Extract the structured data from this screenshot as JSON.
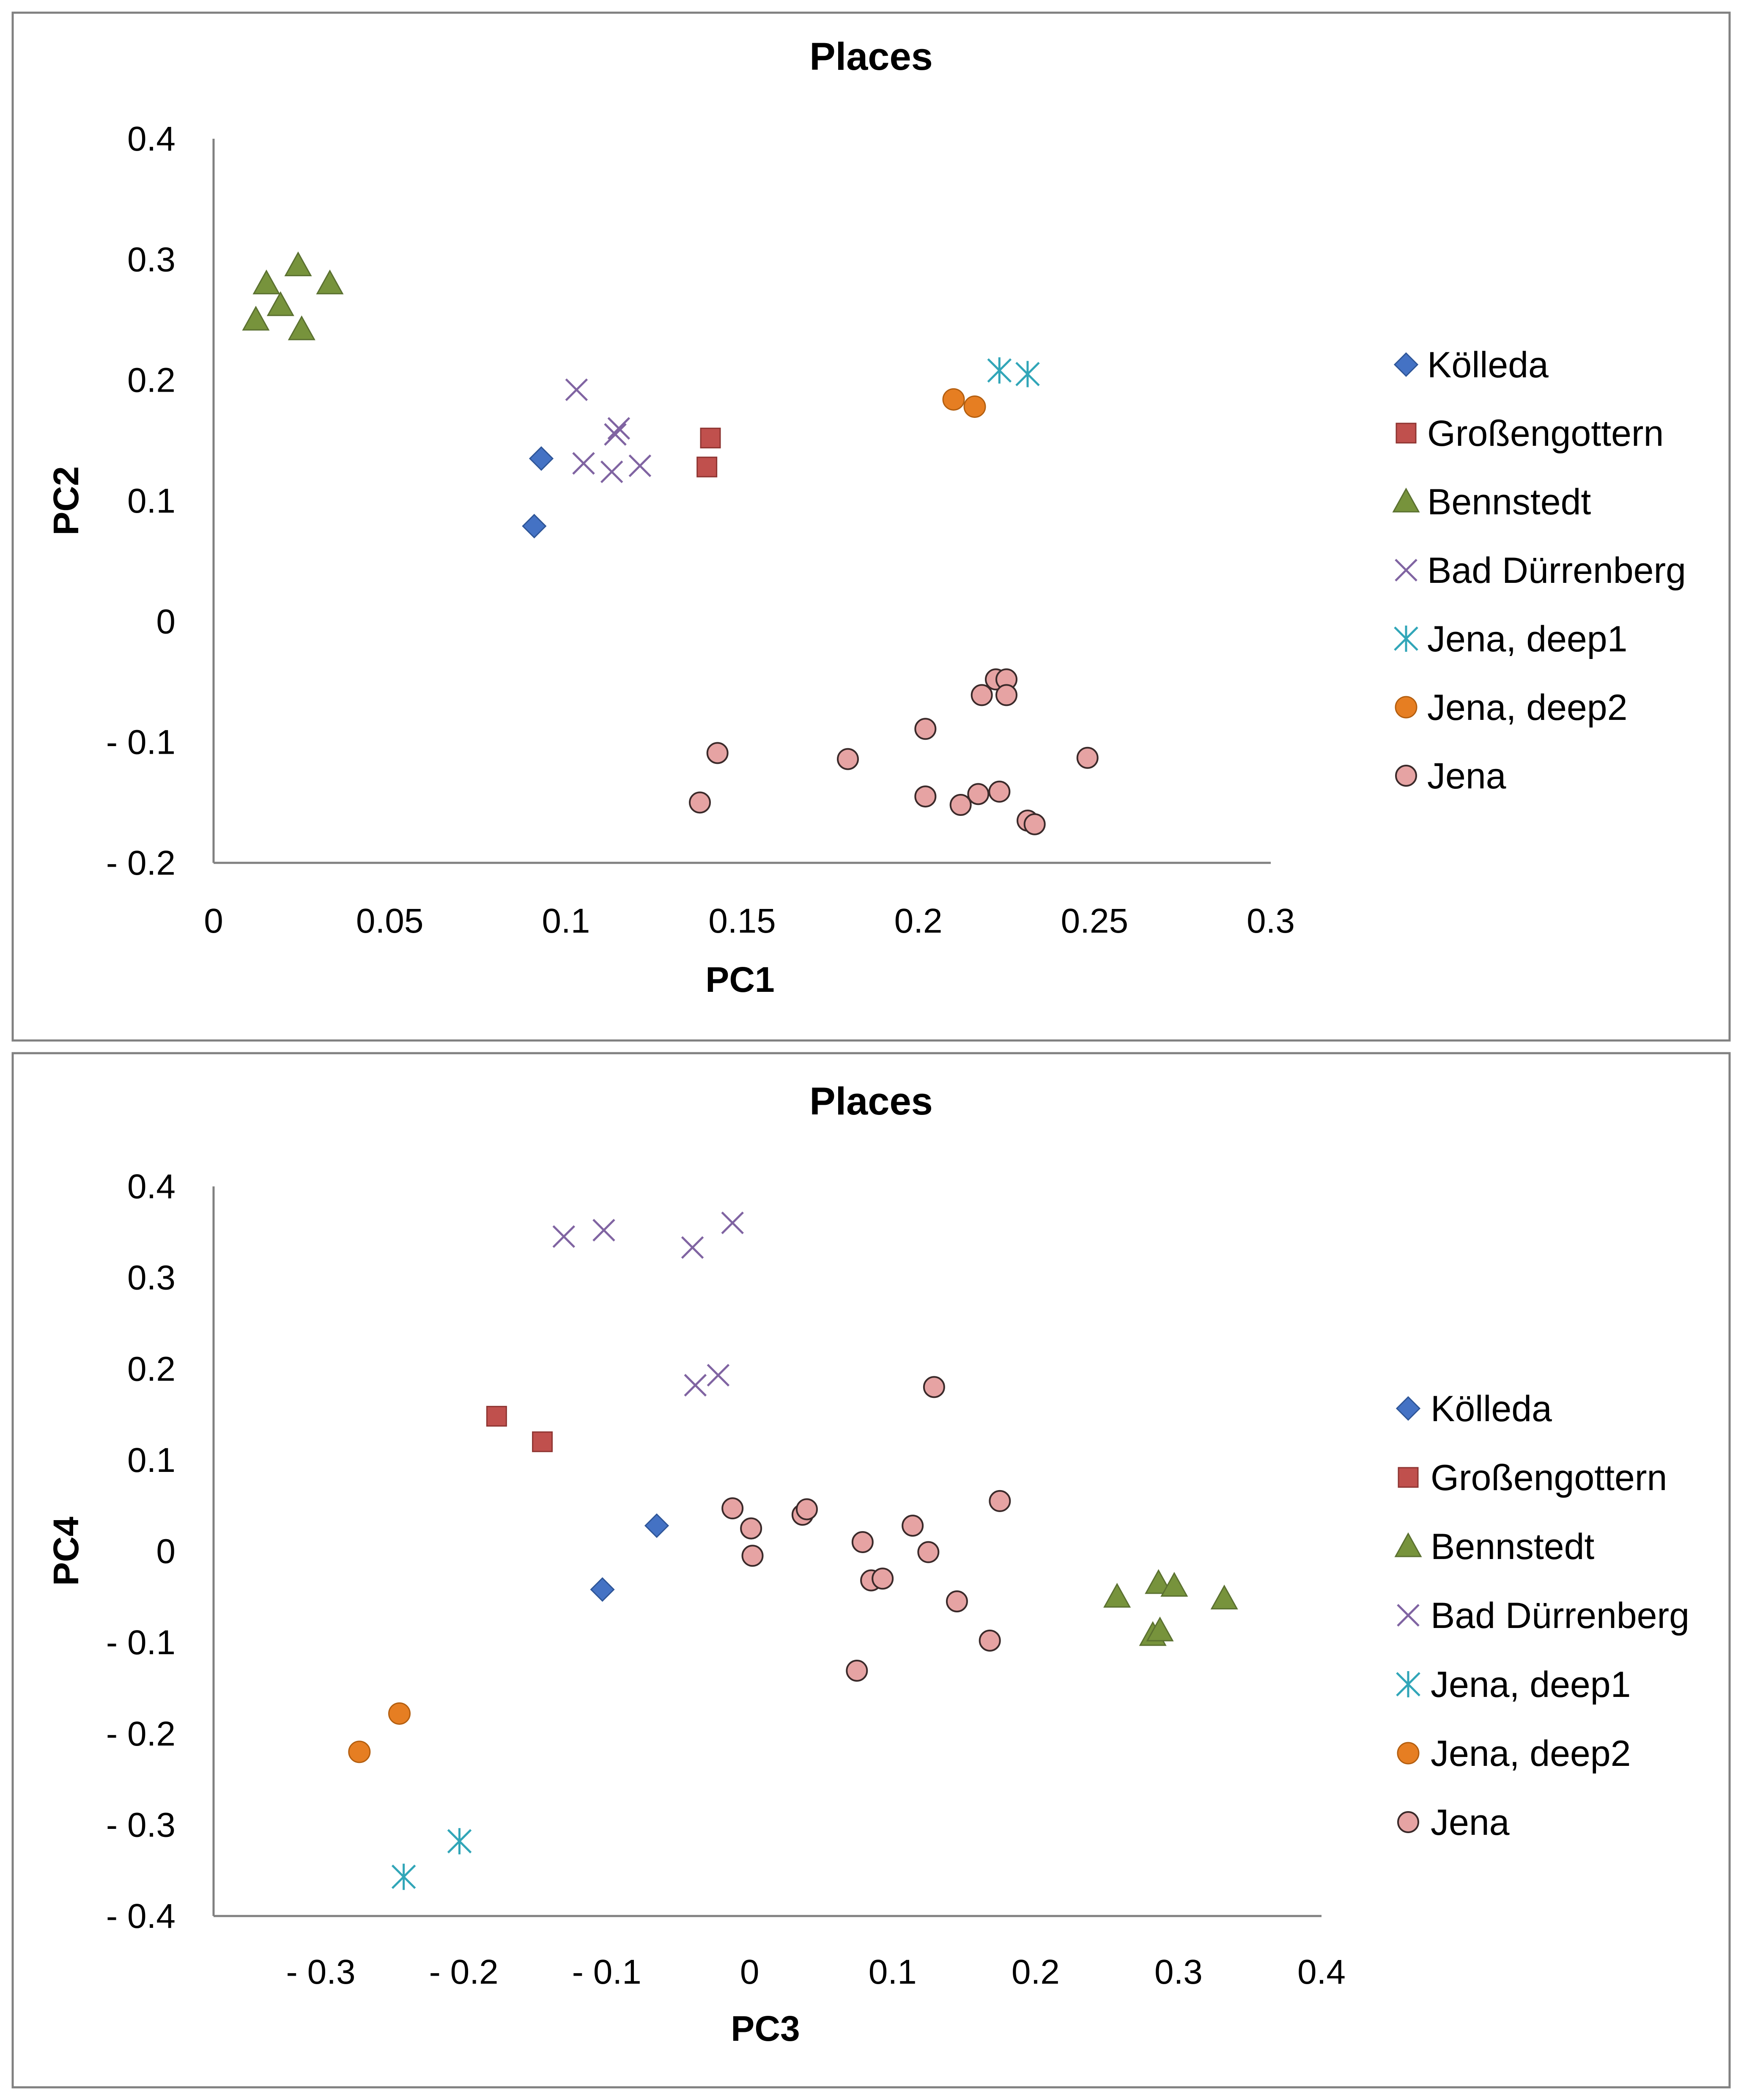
{
  "chart_data": [
    {
      "type": "scatter",
      "title": "Places",
      "xlabel": "PC1",
      "ylabel": "PC2",
      "xlim": [
        0,
        0.3
      ],
      "ylim": [
        -0.2,
        0.4
      ],
      "xticks": [
        0,
        0.05,
        0.1,
        0.15,
        0.2,
        0.25,
        0.3
      ],
      "xtick_labels": [
        "0",
        "0.05",
        "0.1",
        "0.15",
        "0.2",
        "0.25",
        "0.3"
      ],
      "yticks": [
        0.4,
        0.3,
        0.2,
        0.1,
        0,
        -0.1,
        -0.2
      ],
      "ytick_labels": [
        "0.4",
        "0.3",
        "0.2",
        "0.1",
        "0",
        "- 0.1",
        "- 0.2"
      ],
      "grid": false,
      "legend_position": "right",
      "series": [
        {
          "name": "Kölleda",
          "marker": "diamond",
          "color": "#4472C4",
          "points": [
            [
              0.093,
              0.135
            ],
            [
              0.091,
              0.079
            ]
          ]
        },
        {
          "name": "Großengottern",
          "marker": "square",
          "color": "#C0504D",
          "points": [
            [
              0.141,
              0.152
            ],
            [
              0.14,
              0.128
            ]
          ]
        },
        {
          "name": "Bennstedt",
          "marker": "triangle",
          "color": "#77933C",
          "points": [
            [
              0.015,
              0.28
            ],
            [
              0.024,
              0.295
            ],
            [
              0.033,
              0.28
            ],
            [
              0.012,
              0.25
            ],
            [
              0.019,
              0.262
            ],
            [
              0.025,
              0.242
            ]
          ]
        },
        {
          "name": "Bad Dürrenberg",
          "marker": "x",
          "color": "#8064A2",
          "points": [
            [
              0.103,
              0.192
            ],
            [
              0.115,
              0.16
            ],
            [
              0.114,
              0.155
            ],
            [
              0.105,
              0.131
            ],
            [
              0.113,
              0.124
            ],
            [
              0.121,
              0.129
            ]
          ]
        },
        {
          "name": "Jena, deep1",
          "marker": "star",
          "color": "#31A6B8",
          "points": [
            [
              0.223,
              0.208
            ],
            [
              0.231,
              0.205
            ]
          ]
        },
        {
          "name": "Jena, deep2",
          "marker": "circle",
          "color": "#E67E22",
          "points": [
            [
              0.21,
              0.184
            ],
            [
              0.216,
              0.178
            ]
          ]
        },
        {
          "name": "Jena",
          "marker": "circle-outline",
          "color": "#E6A3A3",
          "points": [
            [
              0.222,
              -0.048
            ],
            [
              0.225,
              -0.048
            ],
            [
              0.218,
              -0.061
            ],
            [
              0.225,
              -0.061
            ],
            [
              0.202,
              -0.089
            ],
            [
              0.143,
              -0.109
            ],
            [
              0.18,
              -0.114
            ],
            [
              0.248,
              -0.113
            ],
            [
              0.138,
              -0.15
            ],
            [
              0.202,
              -0.145
            ],
            [
              0.212,
              -0.152
            ],
            [
              0.217,
              -0.143
            ],
            [
              0.223,
              -0.141
            ],
            [
              0.231,
              -0.165
            ],
            [
              0.233,
              -0.168
            ]
          ]
        }
      ]
    },
    {
      "type": "scatter",
      "title": "Places",
      "xlabel": "PC3",
      "ylabel": "PC4",
      "xlim": [
        -0.375,
        0.4
      ],
      "ylim": [
        -0.4,
        0.4
      ],
      "xticks": [
        -0.3,
        -0.2,
        -0.1,
        0,
        0.1,
        0.2,
        0.3,
        0.4
      ],
      "xtick_labels": [
        "- 0.3",
        "- 0.2",
        "- 0.1",
        "0",
        "0.1",
        "0.2",
        "0.3",
        "0.4"
      ],
      "yticks": [
        0.4,
        0.3,
        0.2,
        0.1,
        0,
        -0.1,
        -0.2,
        -0.3,
        -0.4
      ],
      "ytick_labels": [
        "0.4",
        "0.3",
        "0.2",
        "0.1",
        "0",
        "- 0.1",
        "- 0.2",
        "- 0.3",
        "- 0.4"
      ],
      "grid": false,
      "legend_position": "right",
      "series": [
        {
          "name": "Kölleda",
          "marker": "diamond",
          "color": "#4472C4",
          "points": [
            [
              -0.065,
              0.028
            ],
            [
              -0.103,
              -0.042
            ]
          ]
        },
        {
          "name": "Großengottern",
          "marker": "square",
          "color": "#C0504D",
          "points": [
            [
              -0.177,
              0.148
            ],
            [
              -0.145,
              0.12
            ]
          ]
        },
        {
          "name": "Bennstedt",
          "marker": "triangle",
          "color": "#77933C",
          "points": [
            [
              0.257,
              -0.05
            ],
            [
              0.286,
              -0.035
            ],
            [
              0.297,
              -0.038
            ],
            [
              0.332,
              -0.052
            ],
            [
              0.282,
              -0.092
            ],
            [
              0.287,
              -0.087
            ]
          ]
        },
        {
          "name": "Bad Dürrenberg",
          "marker": "x",
          "color": "#8064A2",
          "points": [
            [
              -0.13,
              0.345
            ],
            [
              -0.102,
              0.352
            ],
            [
              -0.04,
              0.333
            ],
            [
              -0.012,
              0.36
            ],
            [
              -0.038,
              0.182
            ],
            [
              -0.022,
              0.193
            ]
          ]
        },
        {
          "name": "Jena, deep1",
          "marker": "star",
          "color": "#31A6B8",
          "points": [
            [
              -0.203,
              -0.318
            ],
            [
              -0.242,
              -0.357
            ]
          ]
        },
        {
          "name": "Jena, deep2",
          "marker": "circle",
          "color": "#E67E22",
          "points": [
            [
              -0.245,
              -0.178
            ],
            [
              -0.273,
              -0.22
            ]
          ]
        },
        {
          "name": "Jena",
          "marker": "circle-outline",
          "color": "#E6A3A3",
          "points": [
            [
              0.129,
              0.18
            ],
            [
              0.175,
              0.055
            ],
            [
              -0.012,
              0.047
            ],
            [
              0.037,
              0.04
            ],
            [
              0.04,
              0.046
            ],
            [
              0.001,
              0.025
            ],
            [
              0.002,
              -0.005
            ],
            [
              0.079,
              0.01
            ],
            [
              0.114,
              0.028
            ],
            [
              0.125,
              -0.001
            ],
            [
              0.085,
              -0.032
            ],
            [
              0.093,
              -0.03
            ],
            [
              0.145,
              -0.055
            ],
            [
              0.168,
              -0.098
            ],
            [
              0.075,
              -0.131
            ]
          ]
        }
      ]
    }
  ]
}
